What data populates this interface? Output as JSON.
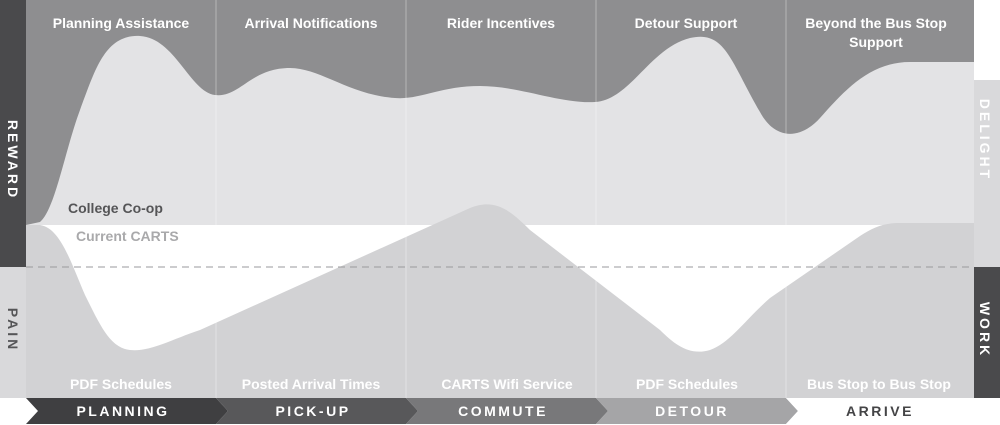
{
  "axis": {
    "reward": "REWARD",
    "pain": "PAIN",
    "delight": "DELIGHT",
    "work": "WORK"
  },
  "series": {
    "college_coop": "College Co-op",
    "current_carts": "Current CARTS"
  },
  "stages": [
    {
      "label": "PLANNING",
      "top": "Planning Assistance",
      "top2": "",
      "bottom": "PDF Schedules"
    },
    {
      "label": "PICK-UP",
      "top": "Arrival Notifications",
      "top2": "",
      "bottom": "Posted Arrival Times"
    },
    {
      "label": "COMMUTE",
      "top": "Rider Incentives",
      "top2": "",
      "bottom": "CARTS Wifi Service"
    },
    {
      "label": "DETOUR",
      "top": "Detour Support",
      "top2": "",
      "bottom": "PDF Schedules"
    },
    {
      "label": "ARRIVE",
      "top": "Beyond the Bus Stop",
      "top2": "Support",
      "bottom": "Bus Stop to Bus Stop"
    }
  ],
  "colors": {
    "side_dark": "#4a4a4c",
    "side_light": "#d9d9db",
    "coop_fill": "#8e8e90",
    "carts_fill": "#d2d2d4",
    "top_band": "#e3e3e5",
    "stage_fills": [
      "#3f3f41",
      "#58585a",
      "#78787a",
      "#a5a5a7",
      "#ffffff"
    ],
    "stage_text": [
      "#ffffff",
      "#ffffff",
      "#ffffff",
      "#ffffff",
      "#444446"
    ]
  }
}
